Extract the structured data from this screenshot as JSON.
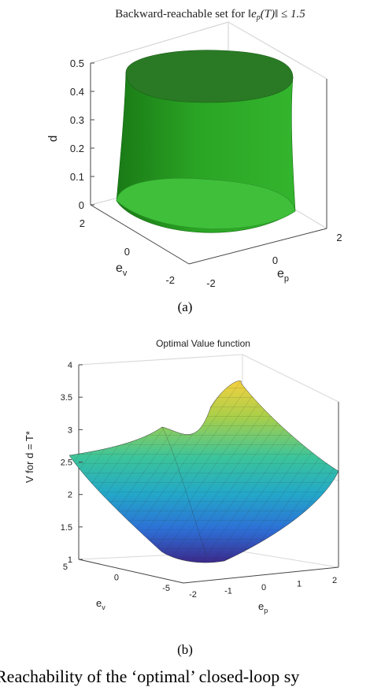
{
  "figure_a": {
    "title": "Backward-reachable set for ‖e_p(T)‖ ≤ 1.5",
    "title_prefix": "Backward-reachable set for ",
    "title_math": "‖e",
    "title_sub": "p",
    "title_math_tail": "(T)‖ ≤ 1.5",
    "zlabel": "d",
    "ylabel": "e",
    "ylabel_sub": "v",
    "xlabel": "e",
    "xlabel_sub": "p",
    "z_ticks": [
      "0",
      "0.1",
      "0.2",
      "0.3",
      "0.4",
      "0.5"
    ],
    "y_ticks": [
      "2",
      "0",
      "-2"
    ],
    "x_ticks": [
      "-2",
      "0",
      "2"
    ],
    "caption": "(a)",
    "colors": {
      "surface_light": "#2fa82a",
      "surface_dark": "#176e14",
      "top_face": "#2a7a25",
      "bottom_face": "#3fbf3a"
    }
  },
  "figure_b": {
    "title": "Optimal Value function",
    "zlabel": "V for d = T*",
    "ylabel": "e",
    "ylabel_sub": "v",
    "xlabel": "e",
    "xlabel_sub": "p",
    "z_ticks": [
      "1",
      "1.5",
      "2",
      "2.5",
      "3",
      "3.5",
      "4"
    ],
    "y_ticks": [
      "5",
      "0",
      "-5"
    ],
    "x_ticks": [
      "-2",
      "-1",
      "0",
      "1",
      "2"
    ],
    "caption": "(b)",
    "colormap": [
      "#3b2a8c",
      "#2d6fd6",
      "#23a8c8",
      "#3cc49a",
      "#a8cf4a",
      "#f4d03f"
    ]
  },
  "trailing_text": "Reachability of the ‘optimal’ closed-loop sy"
}
